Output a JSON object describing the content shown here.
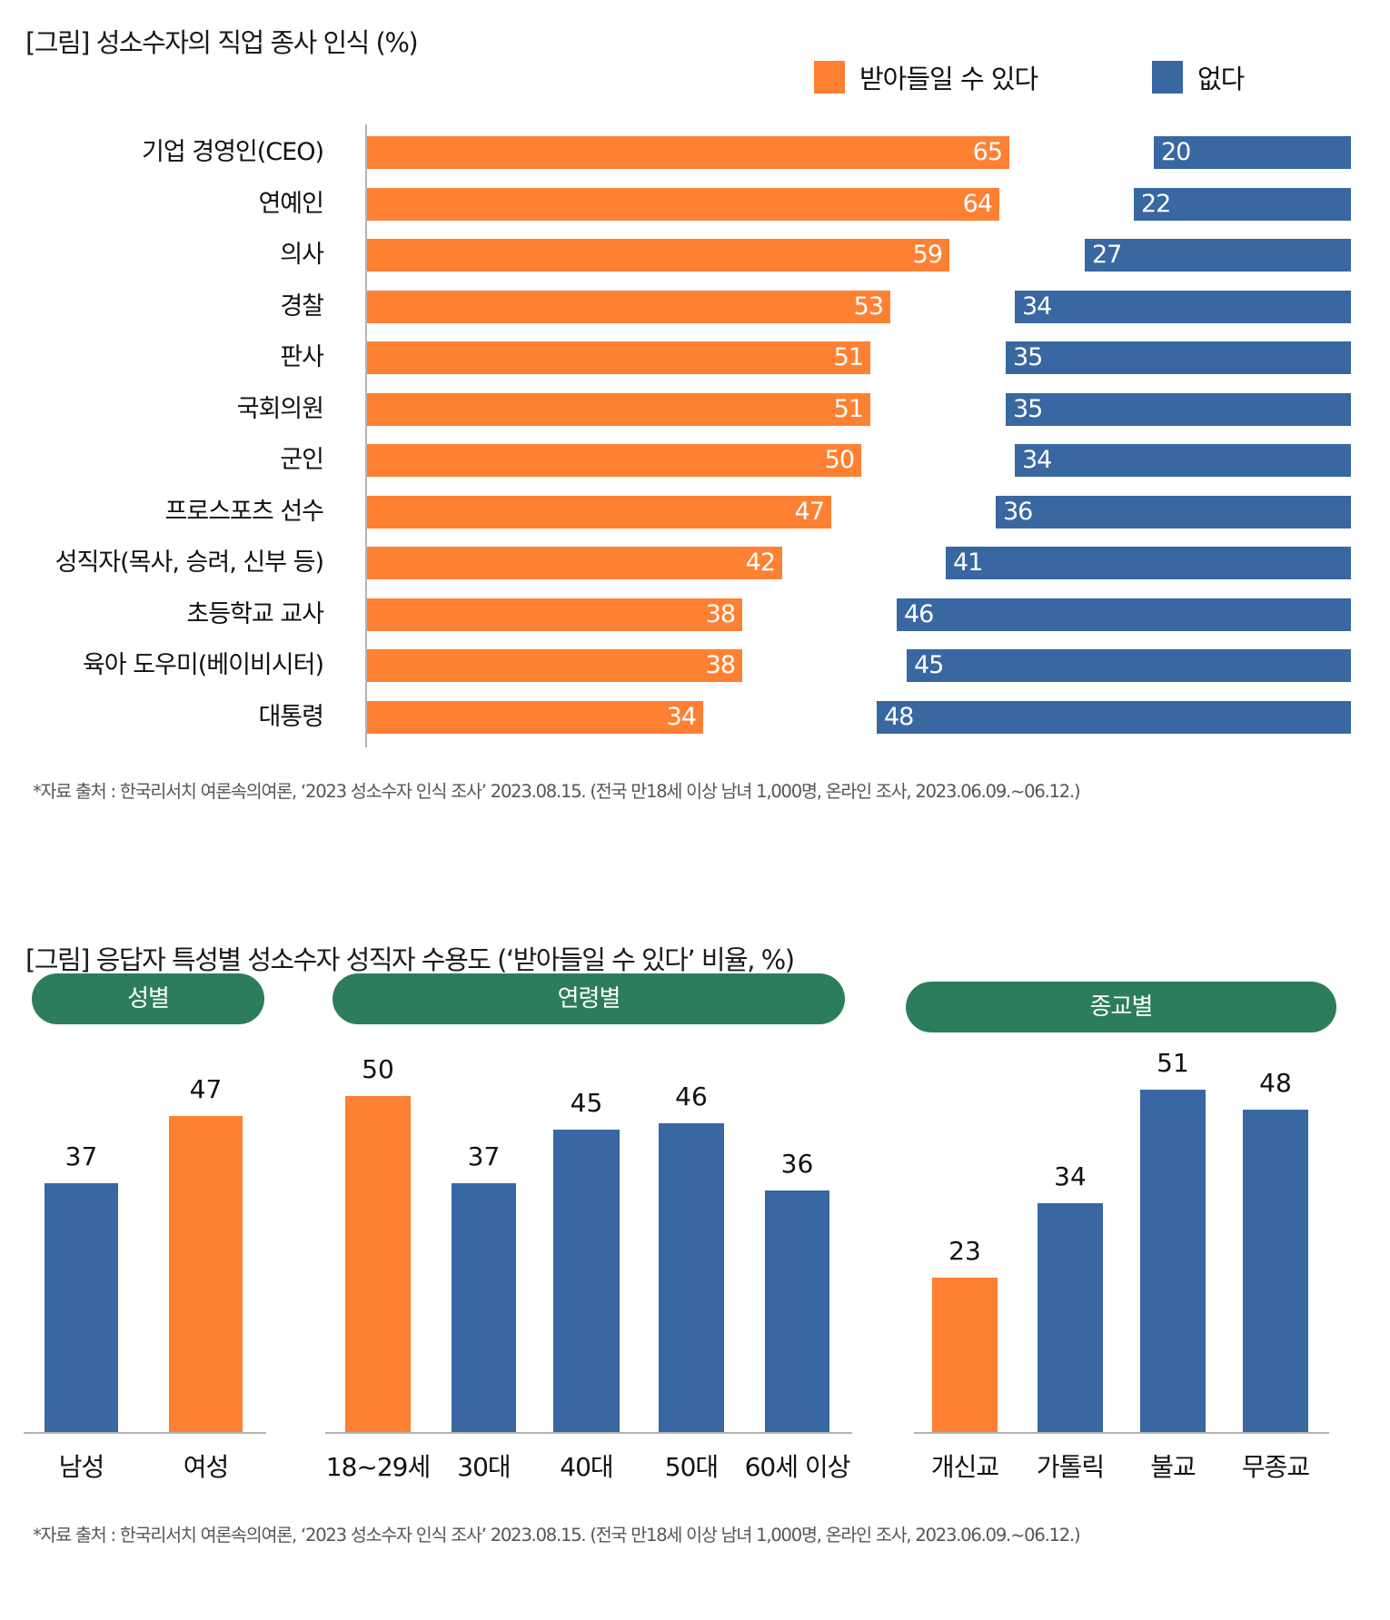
{
  "colors": {
    "accept": "#fe8033",
    "reject": "#3867a2",
    "pill": "#2c7d5c",
    "axis": "#b4b4b4"
  },
  "chart_data": [
    {
      "type": "bar",
      "orientation": "horizontal",
      "title": "[그림] 성소수자의 직업 종사 인식 (%)",
      "legend": [
        "받아들일 수 있다",
        "없다"
      ],
      "legend_position": "top-right",
      "categories": [
        "기업 경영인(CEO)",
        "연예인",
        "의사",
        "경찰",
        "판사",
        "국회의원",
        "군인",
        "프로스포츠 선수",
        "성직자(목사, 승려, 신부 등)",
        "초등학교 교사",
        "육아 도우미(베이비시터)",
        "대통령"
      ],
      "series": [
        {
          "name": "받아들일 수 있다",
          "values": [
            65,
            64,
            59,
            53,
            51,
            51,
            50,
            47,
            42,
            38,
            38,
            34
          ]
        },
        {
          "name": "없다",
          "values": [
            20,
            22,
            27,
            34,
            35,
            35,
            34,
            36,
            41,
            46,
            45,
            48
          ]
        }
      ],
      "xlim": [
        0,
        100
      ],
      "footnote": "*자료 출처 : 한국리서치 여론속의여론, ‘2023 성소수자 인식 조사’ 2023.08.15. (전국 만18세 이상 남녀 1,000명, 온라인 조사, 2023.06.09.~06.12.)"
    },
    {
      "type": "bar",
      "title": "[그림] 응답자 특성별 성소수자 성직자 수용도 (‘받아들일 수 있다’ 비율, %)",
      "groups": [
        {
          "name": "성별",
          "categories": [
            "남성",
            "여성"
          ],
          "values": [
            37,
            47
          ],
          "highlight": [
            false,
            true
          ]
        },
        {
          "name": "연령별",
          "categories": [
            "18~29세",
            "30대",
            "40대",
            "50대",
            "60세 이상"
          ],
          "values": [
            50,
            37,
            45,
            46,
            36
          ],
          "highlight": [
            true,
            false,
            false,
            false,
            false
          ]
        },
        {
          "name": "종교별",
          "categories": [
            "개신교",
            "가톨릭",
            "불교",
            "무종교"
          ],
          "values": [
            23,
            34,
            51,
            48
          ],
          "highlight": [
            true,
            false,
            false,
            false
          ]
        }
      ],
      "ylim": [
        0,
        60
      ],
      "footnote": "*자료 출처 : 한국리서치 여론속의여론, ‘2023 성소수자 인식 조사’ 2023.08.15. (전국 만18세 이상 남녀 1,000명, 온라인 조사, 2023.06.09.~06.12.)"
    }
  ]
}
